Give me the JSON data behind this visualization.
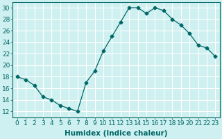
{
  "x": [
    0,
    1,
    2,
    3,
    4,
    5,
    6,
    7,
    8,
    9,
    10,
    11,
    12,
    13,
    14,
    15,
    16,
    17,
    18,
    19,
    20,
    21,
    22,
    23
  ],
  "y": [
    18,
    17.5,
    16.5,
    14.5,
    14,
    13,
    12.5,
    12,
    17,
    19,
    22.5,
    25,
    27.5,
    30,
    30,
    29,
    30,
    29.5,
    28,
    27,
    25.5,
    23.5,
    23,
    21.5
  ],
  "line_color": "#006666",
  "marker": "D",
  "marker_size": 2.5,
  "bg_color": "#cff0f0",
  "grid_color": "#ffffff",
  "xlabel": "Humidex (Indice chaleur)",
  "xlabel_fontsize": 7.5,
  "tick_fontsize": 6.5,
  "ylim": [
    11,
    31
  ],
  "xlim": [
    -0.5,
    23.5
  ],
  "yticks": [
    12,
    14,
    16,
    18,
    20,
    22,
    24,
    26,
    28,
    30
  ],
  "xticks": [
    0,
    1,
    2,
    3,
    4,
    5,
    6,
    7,
    8,
    9,
    10,
    11,
    12,
    13,
    14,
    15,
    16,
    17,
    18,
    19,
    20,
    21,
    22,
    23
  ],
  "xtick_labels": [
    "0",
    "1",
    "2",
    "3",
    "4",
    "5",
    "6",
    "7",
    "8",
    "9",
    "10",
    "11",
    "12",
    "13",
    "14",
    "15",
    "16",
    "17",
    "18",
    "19",
    "20",
    "21",
    "22",
    "23"
  ]
}
